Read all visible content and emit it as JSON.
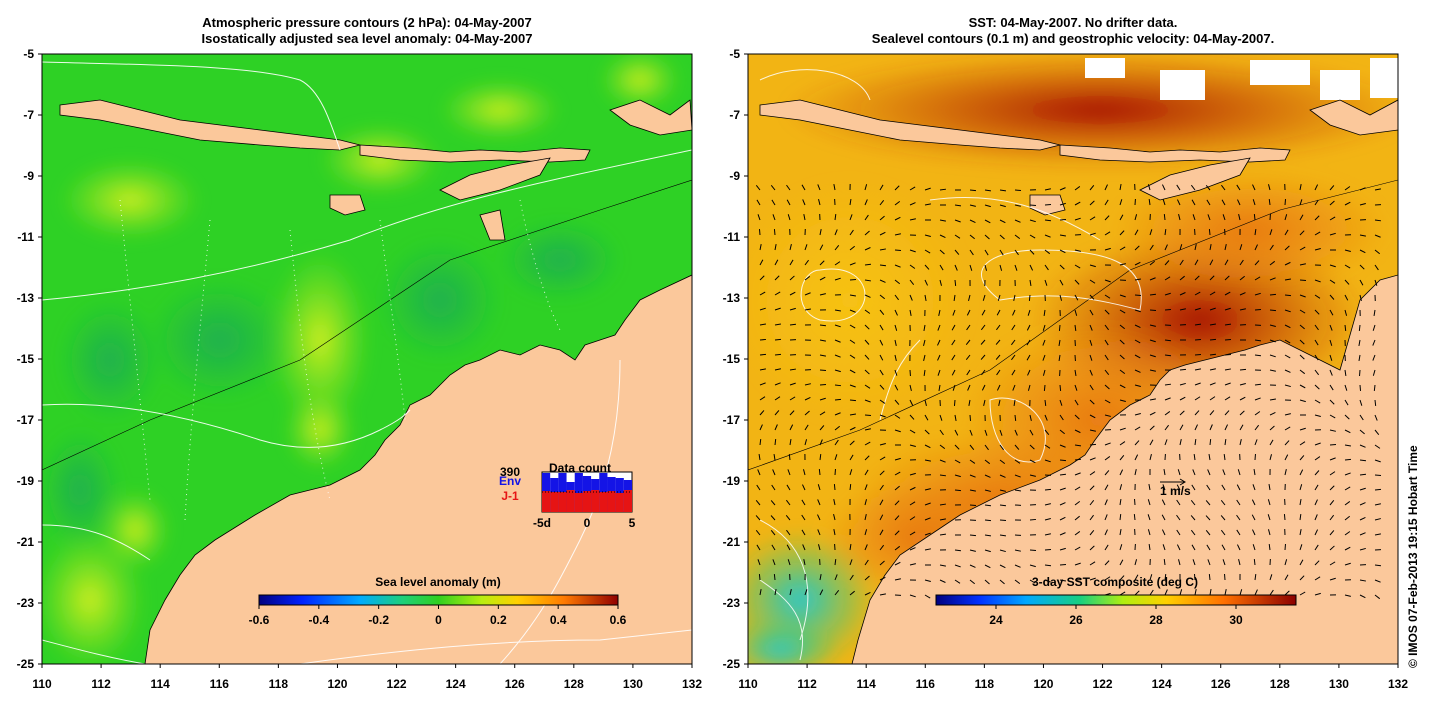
{
  "left_panel": {
    "title_line1": "Atmospheric pressure contours (2 hPa): 04-May-2007",
    "title_line2": "Isostatically adjusted sea level anomaly: 04-May-2007",
    "x_ticks": [
      "110",
      "112",
      "114",
      "116",
      "118",
      "120",
      "122",
      "124",
      "126",
      "128",
      "130",
      "132"
    ],
    "y_ticks": [
      "-5",
      "-7",
      "-9",
      "-11",
      "-13",
      "-15",
      "-17",
      "-19",
      "-21",
      "-23",
      "-25"
    ],
    "colorbar": {
      "label": "Sea level anomaly (m)",
      "ticks": [
        "-0.6",
        "-0.4",
        "-0.2",
        "0",
        "0.2",
        "0.4",
        "0.6"
      ],
      "range": [
        -0.6,
        0.6
      ]
    },
    "data_count": {
      "title": "Data count",
      "max_label": "390",
      "series1_label": "Env",
      "series2_label": "J-1",
      "x_ticks": [
        "-5d",
        "0",
        "5"
      ],
      "series1_color": "#1414e6",
      "series2_color": "#e61414",
      "series1_values": [
        390,
        340,
        390,
        300,
        390,
        360,
        330,
        390,
        350,
        340,
        320
      ],
      "series2_values": [
        210,
        200,
        200,
        220,
        190,
        210,
        220,
        200,
        210,
        190,
        220
      ]
    }
  },
  "right_panel": {
    "title_line1": "SST: 04-May-2007. No drifter data.",
    "title_line2": "Sealevel contours (0.1 m) and geostrophic velocity: 04-May-2007.",
    "x_ticks": [
      "110",
      "112",
      "114",
      "116",
      "118",
      "120",
      "122",
      "124",
      "126",
      "128",
      "130",
      "132"
    ],
    "y_ticks": [
      "-5",
      "-7",
      "-9",
      "-11",
      "-13",
      "-15",
      "-17",
      "-19",
      "-21",
      "-23",
      "-25"
    ],
    "colorbar": {
      "label": "3-day SST composite (deg C)",
      "ticks": [
        "24",
        "26",
        "28",
        "30"
      ],
      "range": [
        22.5,
        31.5
      ]
    },
    "velocity_scale_label": "1 m/s"
  },
  "credit": "© IMOS 07-Feb-2013 19:15 Hobart Time",
  "colors": {
    "land": "#fbc89b",
    "ocean_green": "#2ed125",
    "sst_orange": "#e67a12",
    "sst_red": "#b31208"
  }
}
